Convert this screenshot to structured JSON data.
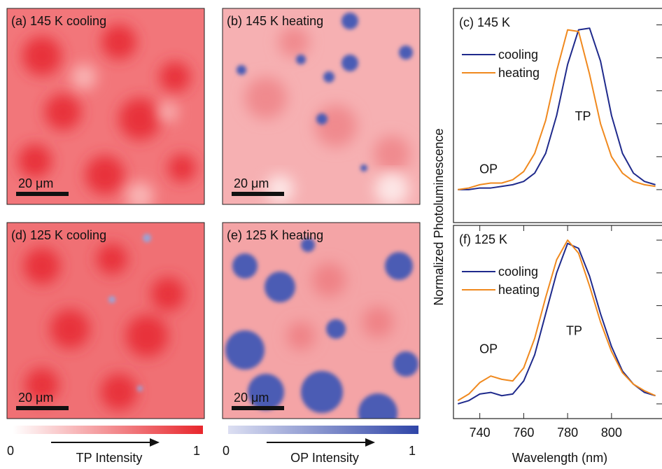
{
  "maps": [
    {
      "label": "(a) 145 K cooling",
      "scale_bar": "20 μm"
    },
    {
      "label": "(b) 145 K heating",
      "scale_bar": "20 μm"
    },
    {
      "label": "(d) 125 K cooling",
      "scale_bar": "20 μm"
    },
    {
      "label": "(e) 125 K heating",
      "scale_bar": "20 μm"
    }
  ],
  "colorbars": [
    {
      "min_label": "0",
      "max_label": "1",
      "label": "TP Intensity"
    },
    {
      "min_label": "0",
      "max_label": "1",
      "label": "OP Intensity"
    }
  ],
  "shared_ylabel": "Normalized Photoluminescence",
  "chart_data": [
    {
      "type": "line",
      "title": "(c) 145 K",
      "x": [
        730,
        735,
        740,
        745,
        750,
        755,
        760,
        765,
        770,
        775,
        780,
        785,
        790,
        795,
        800,
        805,
        810,
        815,
        820
      ],
      "series": [
        {
          "name": "cooling",
          "color": "#1f2a8c",
          "values": [
            0.0,
            0.0,
            0.01,
            0.01,
            0.02,
            0.03,
            0.05,
            0.1,
            0.22,
            0.45,
            0.76,
            0.97,
            0.98,
            0.78,
            0.45,
            0.22,
            0.1,
            0.05,
            0.03
          ]
        },
        {
          "name": "heating",
          "color": "#f0891e",
          "values": [
            0.0,
            0.01,
            0.03,
            0.04,
            0.04,
            0.06,
            0.11,
            0.22,
            0.42,
            0.72,
            0.97,
            0.96,
            0.7,
            0.4,
            0.2,
            0.1,
            0.05,
            0.03,
            0.02
          ]
        }
      ],
      "annotations": [
        "OP",
        "TP"
      ],
      "xlim": [
        728,
        823
      ],
      "ylim": [
        -0.2,
        1.1
      ],
      "yticks": [
        0,
        0.2,
        0.4,
        0.6,
        0.8,
        1.0
      ],
      "legend": "upper left"
    },
    {
      "type": "line",
      "title": "(f) 125 K",
      "x": [
        730,
        735,
        740,
        745,
        750,
        755,
        760,
        765,
        770,
        775,
        780,
        785,
        790,
        795,
        800,
        805,
        810,
        815,
        820
      ],
      "series": [
        {
          "name": "cooling",
          "color": "#1f2a8c",
          "values": [
            0.0,
            0.02,
            0.06,
            0.07,
            0.05,
            0.06,
            0.14,
            0.3,
            0.55,
            0.8,
            0.98,
            0.95,
            0.78,
            0.55,
            0.35,
            0.2,
            0.12,
            0.07,
            0.05
          ]
        },
        {
          "name": "heating",
          "color": "#f0891e",
          "values": [
            0.02,
            0.06,
            0.13,
            0.17,
            0.15,
            0.14,
            0.22,
            0.4,
            0.65,
            0.88,
            1.0,
            0.92,
            0.72,
            0.5,
            0.32,
            0.19,
            0.12,
            0.08,
            0.05
          ]
        }
      ],
      "annotations": [
        "OP",
        "TP"
      ],
      "xlabel": "Wavelength (nm)",
      "xlim": [
        728,
        823
      ],
      "ylim": [
        -0.09,
        1.09
      ],
      "xticks": [
        740,
        760,
        780,
        800
      ],
      "yticks": [
        0,
        0.2,
        0.4,
        0.6,
        0.8,
        1.0
      ],
      "legend": "upper left"
    }
  ]
}
